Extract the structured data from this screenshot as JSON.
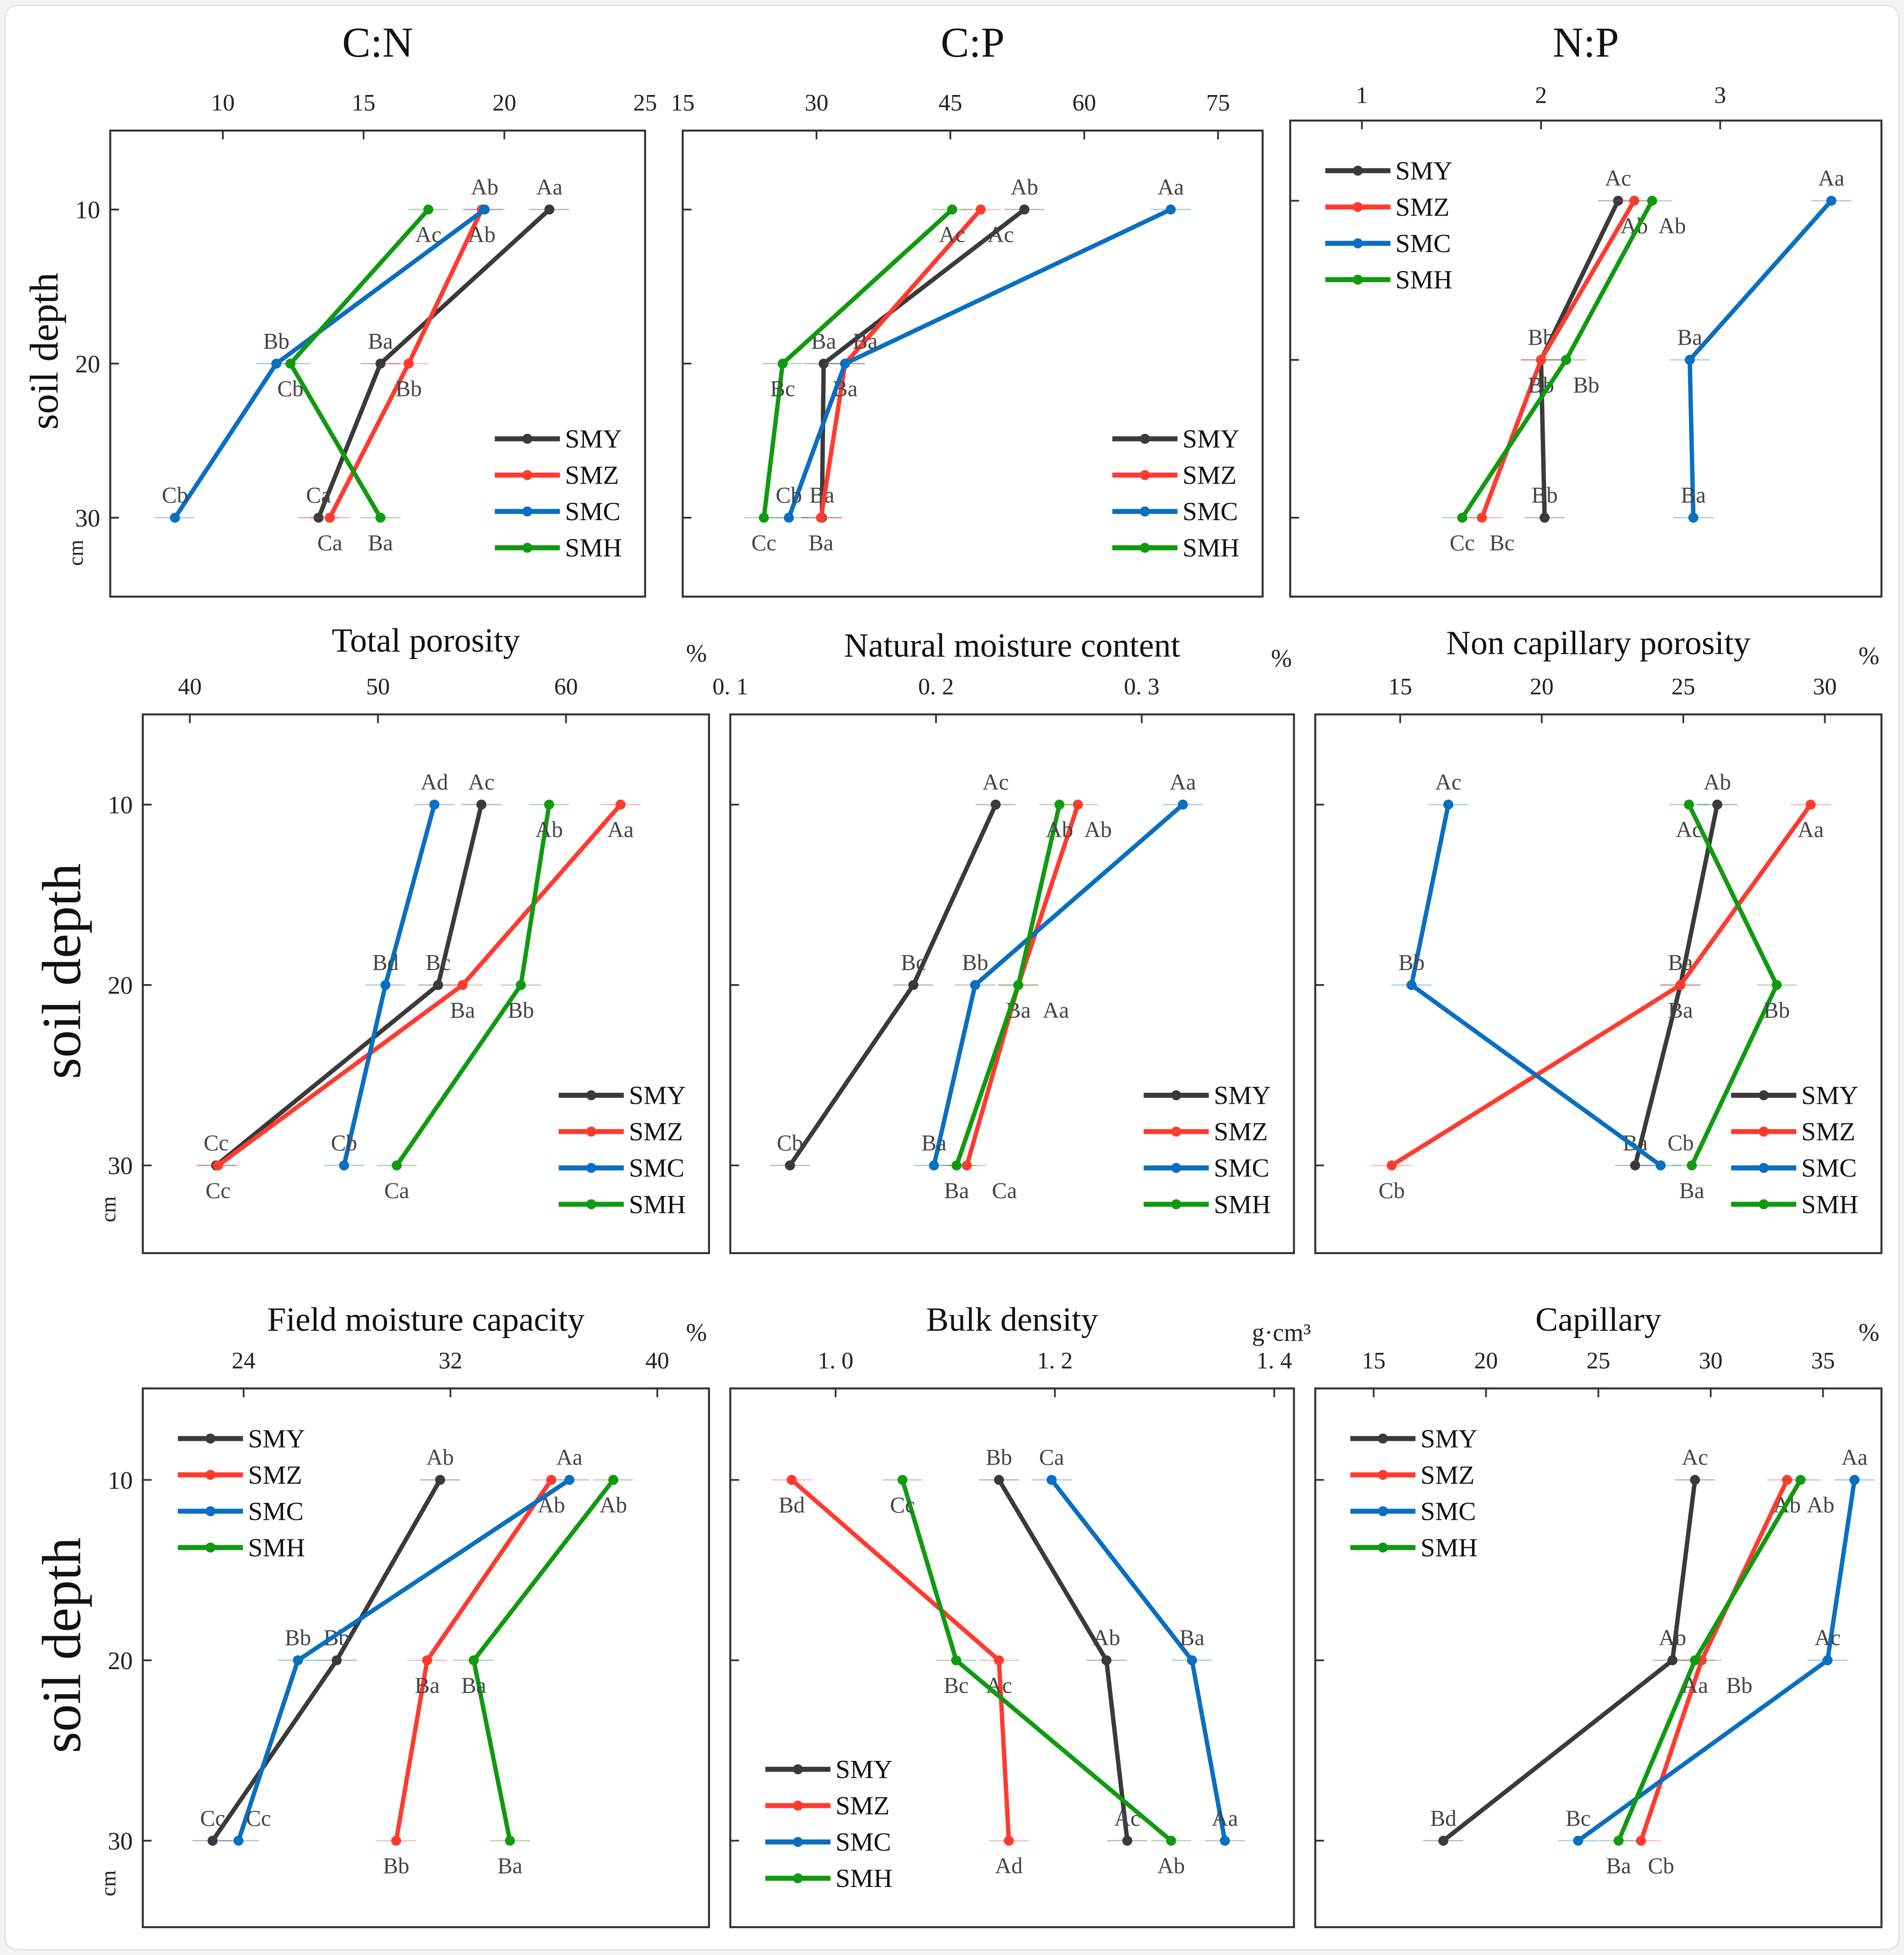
{
  "depth_axis": {
    "label": "soil depth",
    "unit": "cm",
    "ticks": [
      10,
      20,
      30
    ]
  },
  "legend_names": [
    "SMY",
    "SMZ",
    "SMC",
    "SMH"
  ],
  "colors": {
    "SMY": "#3a3a3a",
    "SMZ": "#ff3b30",
    "SMC": "#0a6fc0",
    "SMH": "#109a10"
  },
  "chart_data": [
    {
      "type": "line",
      "title": "C:N",
      "unit": "",
      "xlim": [
        6,
        25
      ],
      "xticks": [
        10,
        15,
        20,
        25
      ],
      "legend": "bottom-right",
      "series": [
        {
          "name": "SMY",
          "values": [
            21.6,
            15.6,
            13.4
          ],
          "letters": [
            "Aa",
            "Ba",
            "Ca"
          ]
        },
        {
          "name": "SMZ",
          "values": [
            19.2,
            16.6,
            13.8
          ],
          "letters": [
            "Ab",
            "Bb",
            "Ca"
          ]
        },
        {
          "name": "SMC",
          "values": [
            19.3,
            11.9,
            8.3
          ],
          "letters": [
            "Ab",
            "Bb",
            "Cb"
          ]
        },
        {
          "name": "SMH",
          "values": [
            17.3,
            12.4,
            15.6
          ],
          "letters": [
            "Ac",
            "Cb",
            "Ba"
          ]
        }
      ]
    },
    {
      "type": "line",
      "title": "C:P",
      "unit": "",
      "xlim": [
        15,
        80
      ],
      "xticks": [
        15,
        30,
        45,
        60,
        75
      ],
      "legend": "bottom-right",
      "series": [
        {
          "name": "SMY",
          "values": [
            53.3,
            30.8,
            30.6
          ],
          "letters": [
            "Ab",
            "Ba",
            "Ba"
          ]
        },
        {
          "name": "SMZ",
          "values": [
            48.4,
            33.2,
            30.5
          ],
          "letters": [
            "Ac",
            "Ba",
            "Ba"
          ]
        },
        {
          "name": "SMC",
          "values": [
            69.7,
            33.2,
            26.9
          ],
          "letters": [
            "Aa",
            "Ba",
            "Cb"
          ]
        },
        {
          "name": "SMH",
          "values": [
            45.2,
            26.2,
            24.1
          ],
          "letters": [
            "Ac",
            "Bc",
            "Cc"
          ]
        }
      ]
    },
    {
      "type": "line",
      "title": "N:P",
      "unit": "",
      "xlim": [
        0.6,
        3.9
      ],
      "xticks": [
        1,
        2,
        3
      ],
      "legend": "top-left",
      "series": [
        {
          "name": "SMY",
          "values": [
            2.43,
            2.0,
            2.02
          ],
          "letters": [
            "Ac",
            "Bb",
            "Bb"
          ]
        },
        {
          "name": "SMZ",
          "values": [
            2.52,
            2.0,
            1.67
          ],
          "letters": [
            "Ab",
            "Bb",
            "Bc"
          ]
        },
        {
          "name": "SMC",
          "values": [
            3.62,
            2.83,
            2.85
          ],
          "letters": [
            "Aa",
            "Ba",
            "Ba"
          ]
        },
        {
          "name": "SMH",
          "values": [
            2.62,
            2.14,
            1.56
          ],
          "letters": [
            "Ab",
            "Bb",
            "Cc"
          ]
        }
      ]
    },
    {
      "type": "line",
      "title": "Total porosity",
      "unit": "%",
      "xlim": [
        37.5,
        67.6
      ],
      "xticks": [
        40,
        50,
        60
      ],
      "legend": "bottom-right",
      "series": [
        {
          "name": "SMY",
          "values": [
            55.5,
            53.2,
            41.4
          ],
          "letters": [
            "Ac",
            "Bc",
            "Cc"
          ]
        },
        {
          "name": "SMZ",
          "values": [
            62.9,
            54.5,
            41.5
          ],
          "letters": [
            "Aa",
            "Ba",
            "Cc"
          ]
        },
        {
          "name": "SMC",
          "values": [
            53.0,
            50.4,
            48.2
          ],
          "letters": [
            "Ad",
            "Bd",
            "Cb"
          ]
        },
        {
          "name": "SMH",
          "values": [
            59.1,
            57.6,
            51.0
          ],
          "letters": [
            "Ab",
            "Bb",
            "Ca"
          ]
        }
      ]
    },
    {
      "type": "line",
      "title": "Natural moisture content",
      "unit": "%",
      "xlim": [
        0.1,
        0.374
      ],
      "xticks": [
        "0. 1",
        "0. 2",
        "0. 3"
      ],
      "xtick_values": [
        0.1,
        0.2,
        0.3
      ],
      "legend": "bottom-right",
      "series": [
        {
          "name": "SMY",
          "values": [
            0.229,
            0.189,
            0.129
          ],
          "letters": [
            "Ac",
            "Bc",
            "Cb"
          ]
        },
        {
          "name": "SMZ",
          "values": [
            0.269,
            0.24,
            0.215
          ],
          "letters": [
            "Ab",
            "Ba",
            "Ca"
          ]
        },
        {
          "name": "SMC",
          "values": [
            0.32,
            0.219,
            0.199
          ],
          "letters": [
            "Aa",
            "Bb",
            "Ba"
          ]
        },
        {
          "name": "SMH",
          "values": [
            0.26,
            0.24,
            0.21
          ],
          "letters": [
            "Ab",
            "Aa",
            "Ba"
          ]
        }
      ]
    },
    {
      "type": "line",
      "title": "Non capillary porosity",
      "unit": "%",
      "xlim": [
        12,
        32
      ],
      "xticks": [
        15,
        20,
        25,
        30
      ],
      "legend": "bottom-right",
      "series": [
        {
          "name": "SMY",
          "values": [
            26.2,
            24.9,
            23.3
          ],
          "letters": [
            "Ab",
            "Ba",
            "Ba"
          ]
        },
        {
          "name": "SMZ",
          "values": [
            29.5,
            24.9,
            14.7
          ],
          "letters": [
            "Aa",
            "Ba",
            "Cb"
          ]
        },
        {
          "name": "SMC",
          "values": [
            16.7,
            15.4,
            24.2
          ],
          "letters": [
            "Ac",
            "Bb",
            "Cb"
          ]
        },
        {
          "name": "SMH",
          "values": [
            25.2,
            28.3,
            25.3
          ],
          "letters": [
            "Ac",
            "Bb",
            "Ba"
          ]
        }
      ]
    },
    {
      "type": "line",
      "title": "Field moisture capacity",
      "unit": "%",
      "xlim": [
        20.1,
        42
      ],
      "xticks": [
        24,
        32,
        40
      ],
      "legend": "top-left",
      "series": [
        {
          "name": "SMY",
          "values": [
            31.6,
            27.6,
            22.8
          ],
          "letters": [
            "Ab",
            "Bb",
            "Cc"
          ]
        },
        {
          "name": "SMZ",
          "values": [
            35.9,
            31.1,
            29.9
          ],
          "letters": [
            "Ab",
            "Ba",
            "Bb"
          ]
        },
        {
          "name": "SMC",
          "values": [
            36.6,
            26.1,
            23.8
          ],
          "letters": [
            "Aa",
            "Bb",
            "Cc"
          ]
        },
        {
          "name": "SMH",
          "values": [
            38.3,
            32.9,
            34.3
          ],
          "letters": [
            "Ab",
            "Ba",
            "Ba"
          ]
        }
      ]
    },
    {
      "type": "line",
      "title": "Bulk density",
      "unit": "g·cm³",
      "xlim": [
        0.904,
        1.418
      ],
      "xticks": [
        "1. 0",
        "1. 2",
        "1. 4"
      ],
      "xtick_values": [
        1.0,
        1.2,
        1.4
      ],
      "legend": "bottom-left",
      "series": [
        {
          "name": "SMY",
          "values": [
            1.149,
            1.247,
            1.266
          ],
          "letters": [
            "Bb",
            "Ab",
            "Ac"
          ]
        },
        {
          "name": "SMZ",
          "values": [
            0.96,
            1.149,
            1.158
          ],
          "letters": [
            "Bd",
            "Ac",
            "Ad"
          ]
        },
        {
          "name": "SMC",
          "values": [
            1.197,
            1.325,
            1.355
          ],
          "letters": [
            "Ca",
            "Ba",
            "Aa"
          ]
        },
        {
          "name": "SMH",
          "values": [
            1.061,
            1.11,
            1.306
          ],
          "letters": [
            "Cc",
            "Bc",
            "Ab"
          ]
        }
      ]
    },
    {
      "type": "line",
      "title": "Capillary",
      "unit": "%",
      "xlim": [
        12.4,
        37.6
      ],
      "xticks": [
        15,
        20,
        25,
        30,
        35
      ],
      "legend": "top-left",
      "series": [
        {
          "name": "SMY",
          "values": [
            29.3,
            28.3,
            18.1
          ],
          "letters": [
            "Ac",
            "Ab",
            "Bd"
          ]
        },
        {
          "name": "SMZ",
          "values": [
            33.4,
            29.6,
            26.9
          ],
          "letters": [
            "Ab",
            "Bb",
            "Cb"
          ]
        },
        {
          "name": "SMC",
          "values": [
            36.4,
            35.2,
            24.1
          ],
          "letters": [
            "Aa",
            "Ac",
            "Bc"
          ]
        },
        {
          "name": "SMH",
          "values": [
            34.0,
            29.3,
            25.9
          ],
          "letters": [
            "Ab",
            "Aa",
            "Ba"
          ]
        }
      ]
    }
  ]
}
